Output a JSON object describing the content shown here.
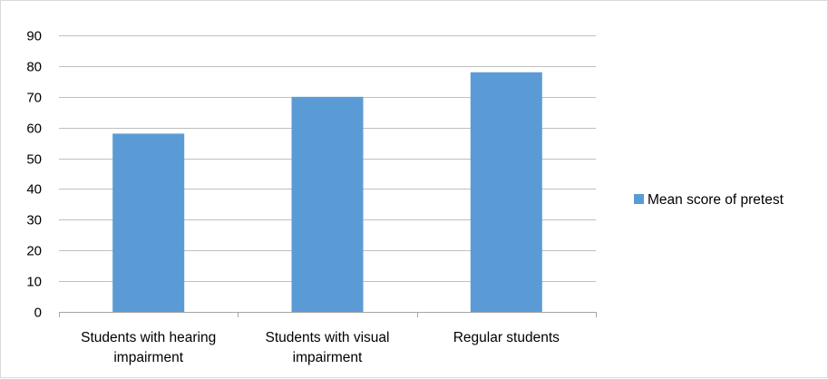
{
  "chart_data": {
    "type": "bar",
    "title": "",
    "xlabel": "",
    "ylabel": "",
    "categories": [
      "Students with hearing impairment",
      "Students with visual impairment",
      "Regular students"
    ],
    "category_lines": [
      [
        "Students with hearing",
        "impairment"
      ],
      [
        "Students with visual",
        "impairment"
      ],
      [
        "Regular students"
      ]
    ],
    "series": [
      {
        "name": "Mean score of pretest",
        "values": [
          58,
          70,
          78
        ],
        "color": "#5b9bd5"
      }
    ],
    "ylim": [
      0,
      90
    ],
    "yticks": [
      0,
      10,
      20,
      30,
      40,
      50,
      60,
      70,
      80,
      90
    ],
    "grid": true,
    "legend_position": "right"
  }
}
